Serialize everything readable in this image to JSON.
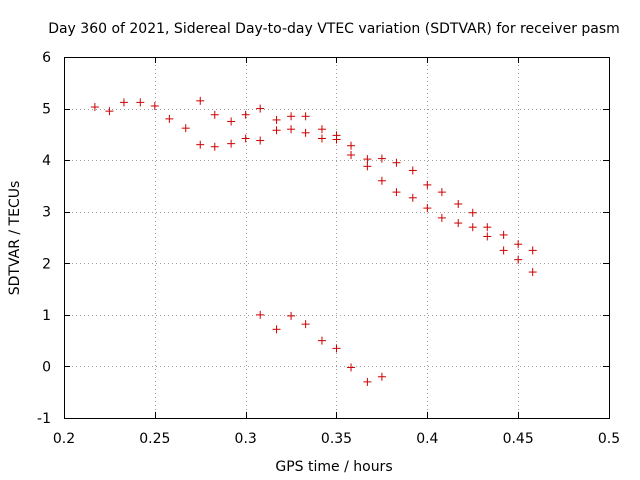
{
  "chart_data": {
    "type": "scatter",
    "title": "Day 360 of 2021, Sidereal Day-to-day VTEC variation (SDTVAR) for receiver pasm",
    "xlabel": "GPS time / hours",
    "ylabel": "SDTVAR / TECUs",
    "xlim": [
      0.2,
      0.5
    ],
    "ylim": [
      -1,
      6
    ],
    "xticks": [
      0.2,
      0.25,
      0.3,
      0.35,
      0.4,
      0.45,
      0.5
    ],
    "xtick_labels": [
      "0.2",
      "0.25",
      "0.3",
      "0.35",
      "0.4",
      "0.45",
      "0.5"
    ],
    "yticks": [
      -1,
      0,
      1,
      2,
      3,
      4,
      5,
      6
    ],
    "ytick_labels": [
      "-1",
      "0",
      "1",
      "2",
      "3",
      "4",
      "5",
      "6"
    ],
    "grid": true,
    "marker_color": "#cc0000",
    "series": [
      {
        "name": "SDTVAR",
        "x": [
          0.217,
          0.225,
          0.233,
          0.242,
          0.25,
          0.258,
          0.267,
          0.275,
          0.275,
          0.283,
          0.283,
          0.292,
          0.292,
          0.3,
          0.3,
          0.308,
          0.308,
          0.317,
          0.317,
          0.325,
          0.325,
          0.333,
          0.333,
          0.342,
          0.342,
          0.35,
          0.35,
          0.358,
          0.358,
          0.367,
          0.367,
          0.375,
          0.375,
          0.383,
          0.383,
          0.392,
          0.392,
          0.4,
          0.4,
          0.408,
          0.408,
          0.417,
          0.417,
          0.425,
          0.425,
          0.433,
          0.433,
          0.442,
          0.442,
          0.45,
          0.45,
          0.458,
          0.458,
          0.308,
          0.317,
          0.325,
          0.333,
          0.342,
          0.35,
          0.358,
          0.367,
          0.375
        ],
        "y": [
          5.03,
          4.95,
          5.12,
          5.12,
          5.05,
          4.8,
          4.62,
          5.15,
          4.3,
          4.88,
          4.26,
          4.75,
          4.32,
          4.88,
          4.42,
          5.0,
          4.38,
          4.78,
          4.58,
          4.85,
          4.6,
          4.85,
          4.53,
          4.6,
          4.42,
          4.48,
          4.4,
          4.28,
          4.1,
          4.02,
          3.88,
          4.03,
          3.6,
          3.95,
          3.38,
          3.8,
          3.27,
          3.52,
          3.07,
          3.38,
          2.88,
          3.15,
          2.78,
          2.98,
          2.7,
          2.7,
          2.52,
          2.55,
          2.25,
          2.37,
          2.07,
          2.25,
          1.83,
          1.0,
          0.72,
          0.98,
          0.82,
          0.5,
          0.35,
          -0.02,
          -0.3,
          -0.2
        ]
      }
    ]
  }
}
